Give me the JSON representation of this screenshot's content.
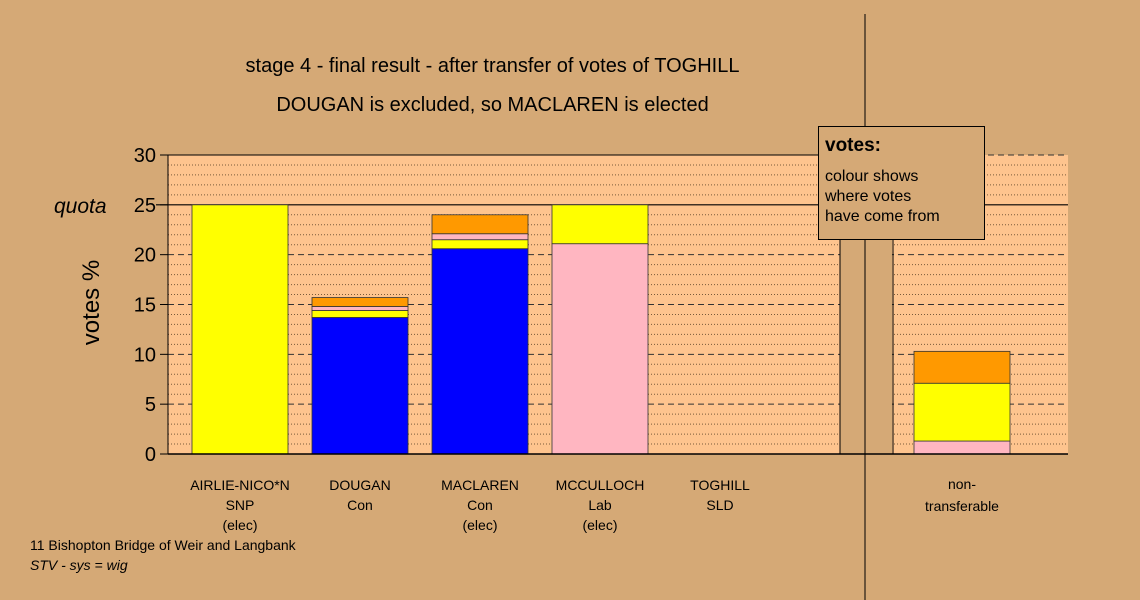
{
  "chart_data": {
    "type": "bar",
    "stacked": true,
    "title": "stage 4 - final result - after transfer of votes of TOGHILL",
    "subtitle": "DOUGAN is excluded, so MACLAREN is elected",
    "ylabel": "votes %",
    "ylim": [
      0,
      30
    ],
    "yticks": [
      "0",
      "5",
      "10",
      "15",
      "20",
      "25",
      "30"
    ],
    "quota": 25,
    "quota_label": "quota",
    "categories": [
      [
        "AIRLIE-NICO*N",
        "SNP",
        "(elec)"
      ],
      [
        "DOUGAN",
        "Con"
      ],
      [
        "MACLAREN",
        "Con",
        "(elec)"
      ],
      [
        "MCCULLOCH",
        "Lab",
        "(elec)"
      ],
      [
        "TOGHILL",
        "SLD"
      ],
      [
        "non-",
        "transferable"
      ]
    ],
    "series": [
      {
        "color": "#0000ff",
        "values": [
          0,
          13.7,
          20.6,
          0,
          0,
          0
        ]
      },
      {
        "color": "#ffb6c1",
        "values": [
          0,
          0,
          0,
          21.1,
          0,
          1.3
        ]
      },
      {
        "color": "#ffff00",
        "values": [
          25.0,
          0.7,
          0.9,
          3.9,
          0,
          5.8
        ]
      },
      {
        "color": "#ffb6c1",
        "values": [
          0,
          0.4,
          0.6,
          0,
          0,
          0
        ]
      },
      {
        "color": "#ff9900",
        "values": [
          0,
          0.9,
          1.9,
          0,
          0,
          3.2
        ]
      }
    ],
    "legend": {
      "title": "votes:",
      "lines": [
        "colour shows",
        "where votes",
        "have come from"
      ],
      "placement": "top-right"
    },
    "grid": true
  },
  "footer": {
    "line1": "11 Bishopton Bridge of Weir and Langbank",
    "line2": "STV - sys = wig"
  },
  "colors": {
    "background": "#d5a976",
    "plot_background": "#fec48e"
  }
}
